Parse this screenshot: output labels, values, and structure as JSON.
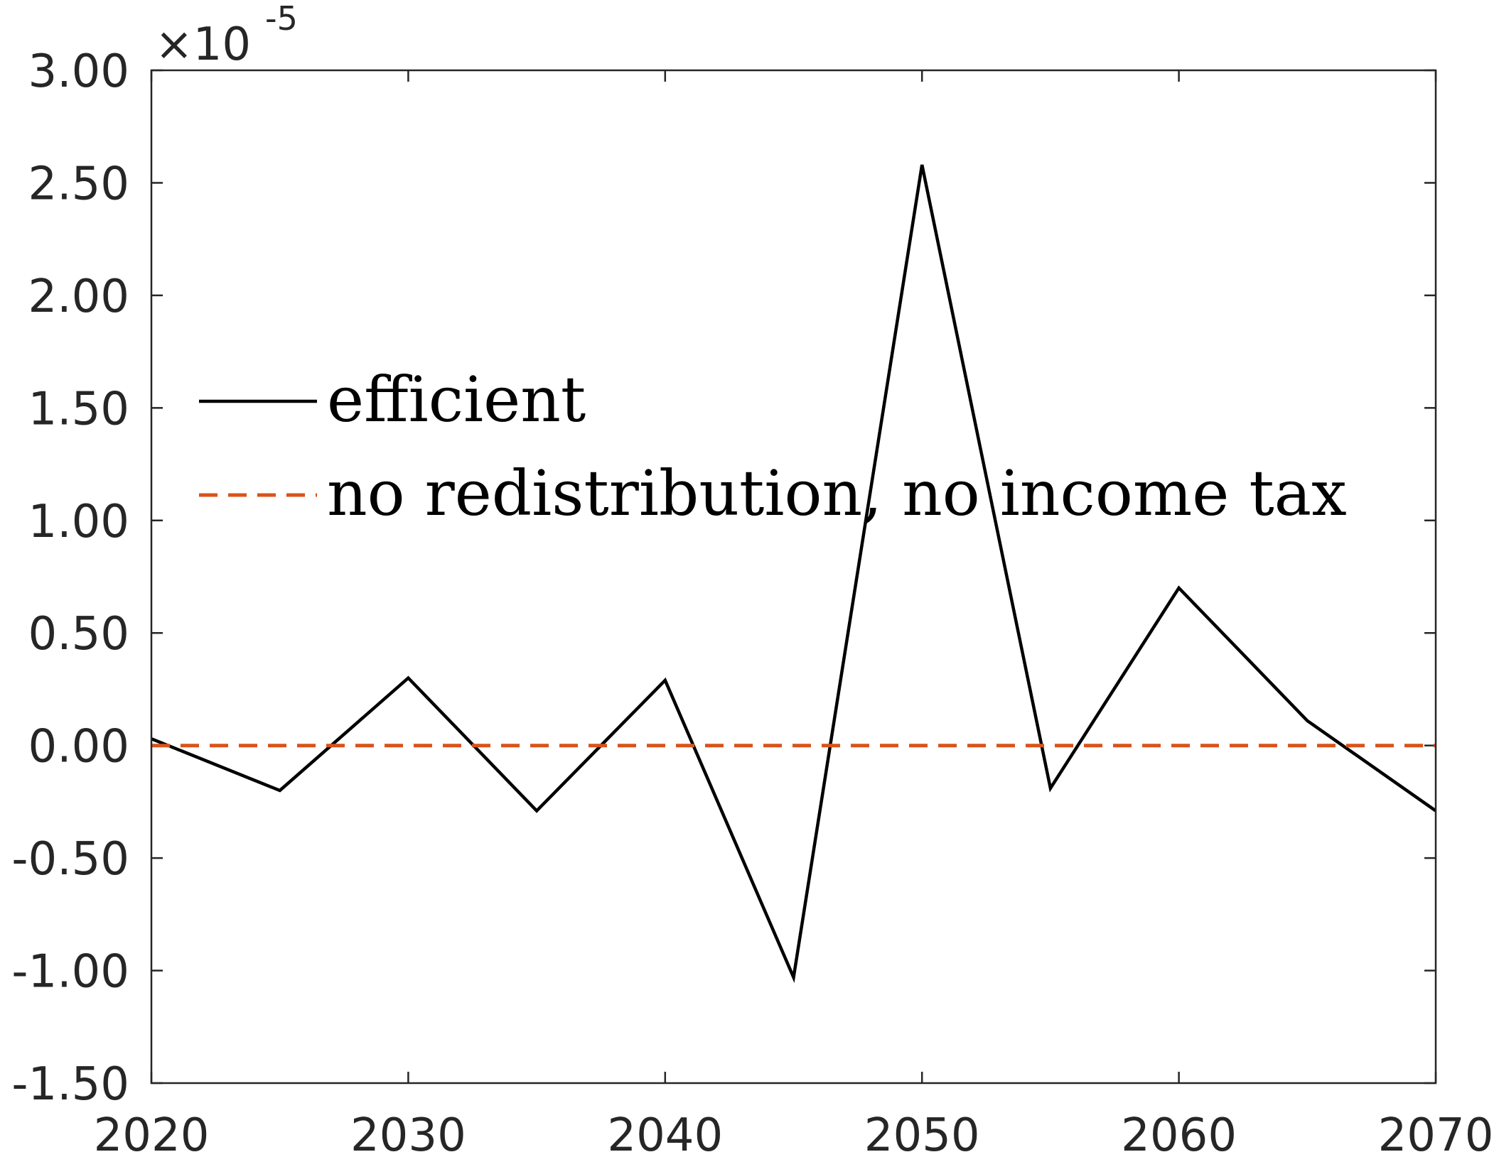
{
  "chart_data": {
    "type": "line",
    "title": "",
    "xlabel": "",
    "ylabel": "",
    "xlim": [
      2020,
      2070
    ],
    "ylim": [
      -1.5,
      3.0
    ],
    "y_multiplier_text": {
      "times": "×10",
      "exponent": "-5"
    },
    "x_ticks": [
      2020,
      2030,
      2040,
      2050,
      2060,
      2070
    ],
    "x_tick_labels": [
      "2020",
      "2030",
      "2040",
      "2050",
      "2060",
      "2070"
    ],
    "y_ticks": [
      -1.5,
      -1.0,
      -0.5,
      0.0,
      0.5,
      1.0,
      1.5,
      2.0,
      2.5,
      3.0
    ],
    "y_tick_labels": [
      "-1.50",
      "-1.00",
      "-0.50",
      "0.00",
      "0.50",
      "1.00",
      "1.50",
      "2.00",
      "2.50",
      "3.00"
    ],
    "grid": false,
    "legend_position": "upper-left",
    "series": [
      {
        "name": "efficient",
        "color": "#000000",
        "style": "solid",
        "x": [
          2020,
          2025,
          2030,
          2035,
          2040,
          2045,
          2050,
          2055,
          2060,
          2065,
          2070
        ],
        "y": [
          0.03,
          -0.2,
          0.3,
          -0.29,
          0.29,
          -1.03,
          2.58,
          -0.19,
          0.7,
          0.11,
          -0.29
        ]
      },
      {
        "name": "no redistribution, no income tax",
        "color": "#D95319",
        "style": "dashed",
        "x": [
          2020,
          2070
        ],
        "y": [
          0.0,
          0.0
        ]
      }
    ]
  }
}
